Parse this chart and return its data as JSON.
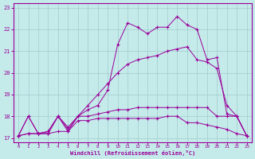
{
  "xlabel": "Windchill (Refroidissement éolien,°C)",
  "xlim": [
    -0.5,
    23.5
  ],
  "ylim": [
    16.8,
    23.2
  ],
  "yticks": [
    17,
    18,
    19,
    20,
    21,
    22,
    23
  ],
  "xticks": [
    0,
    1,
    2,
    3,
    4,
    5,
    6,
    7,
    8,
    9,
    10,
    11,
    12,
    13,
    14,
    15,
    16,
    17,
    18,
    19,
    20,
    21,
    22,
    23
  ],
  "background_color": "#c5eaea",
  "grid_color": "#a0cccc",
  "line_color": "#990099",
  "line1_x": [
    0,
    1,
    2,
    3,
    4,
    5,
    6,
    7,
    8,
    9,
    10,
    11,
    12,
    13,
    14,
    15,
    16,
    17,
    18,
    19,
    20,
    21,
    22,
    23
  ],
  "line1_y": [
    17.1,
    18.0,
    17.2,
    17.2,
    18.0,
    17.3,
    18.0,
    18.3,
    18.5,
    19.2,
    21.3,
    22.3,
    22.1,
    21.8,
    22.1,
    22.1,
    22.6,
    22.2,
    22.0,
    20.6,
    20.7,
    18.1,
    18.0,
    17.1
  ],
  "line2_x": [
    0,
    1,
    2,
    3,
    4,
    5,
    6,
    7,
    8,
    9,
    10,
    11,
    12,
    13,
    14,
    15,
    16,
    17,
    18,
    19,
    20,
    21,
    22,
    23
  ],
  "line2_y": [
    17.1,
    17.2,
    17.2,
    17.2,
    17.3,
    17.3,
    17.8,
    17.8,
    17.9,
    17.9,
    17.9,
    17.9,
    17.9,
    17.9,
    17.9,
    18.0,
    18.0,
    17.7,
    17.7,
    17.6,
    17.5,
    17.4,
    17.2,
    17.1
  ],
  "line3_x": [
    0,
    1,
    2,
    3,
    4,
    5,
    6,
    7,
    8,
    9,
    10,
    11,
    12,
    13,
    14,
    15,
    16,
    17,
    18,
    19,
    20,
    21,
    22,
    23
  ],
  "line3_y": [
    17.1,
    17.2,
    17.2,
    17.3,
    18.0,
    17.5,
    18.0,
    18.0,
    18.1,
    18.2,
    18.3,
    18.3,
    18.4,
    18.4,
    18.4,
    18.4,
    18.4,
    18.4,
    18.4,
    18.4,
    18.0,
    18.0,
    18.0,
    17.1
  ],
  "line4_x": [
    0,
    1,
    2,
    3,
    4,
    5,
    6,
    7,
    8,
    9,
    10,
    11,
    12,
    13,
    14,
    15,
    16,
    17,
    18,
    19,
    20,
    21,
    22,
    23
  ],
  "line4_y": [
    17.1,
    18.0,
    17.2,
    17.3,
    18.0,
    17.4,
    18.0,
    18.5,
    19.0,
    19.5,
    20.0,
    20.4,
    20.6,
    20.7,
    20.8,
    21.0,
    21.1,
    21.2,
    20.6,
    20.5,
    20.2,
    18.5,
    18.0,
    17.1
  ]
}
